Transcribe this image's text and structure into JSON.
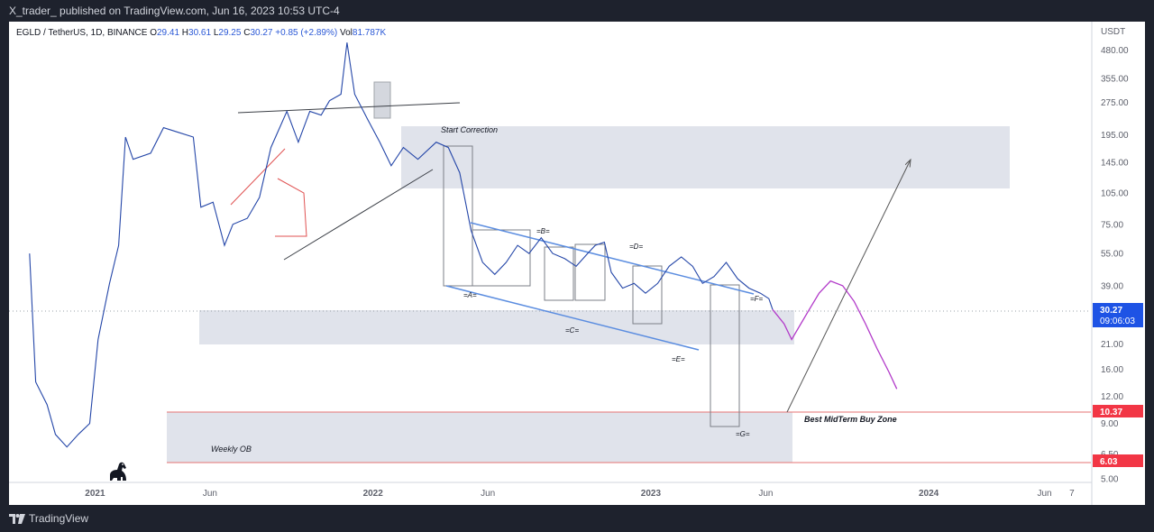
{
  "header": {
    "published_text": "X_trader_ published on TradingView.com, Jun 16, 2023 10:53 UTC-4"
  },
  "footer": {
    "brand_text": "TradingView",
    "logo_icon": "tradingview-logo-icon"
  },
  "symbol": {
    "name": "EGLD / TetherUS, 1D, BINANCE",
    "open_label": "O",
    "open": "29.41",
    "high_label": "H",
    "high": "30.61",
    "low_label": "L",
    "low": "29.25",
    "close_label": "C",
    "close": "30.27",
    "change": "+0.85 (+2.89%)",
    "vol_label": "Vol",
    "vol": "81.787K"
  },
  "colors": {
    "candle": "#2446a8",
    "zone_fill": "#e0e3eb",
    "channel_line": "#5b8de0",
    "forecast_line": "#b23ac9",
    "price_badge": "#1e53e5",
    "level_badge": "#f23645",
    "level_line": "#e57373",
    "text": "#131722",
    "axis_text": "#5d606b"
  },
  "chart_data": {
    "type": "line",
    "title": "EGLD / TetherUS, 1D, BINANCE",
    "y_unit": "USDT",
    "y_scale": "log",
    "y_ticks": [
      "480.00",
      "355.00",
      "275.00",
      "195.00",
      "145.00",
      "105.00",
      "75.00",
      "55.00",
      "39.00",
      "30.27",
      "21.00",
      "16.00",
      "12.00",
      "10.37",
      "9.00",
      "6.50",
      "6.03",
      "5.00"
    ],
    "x_ticks": [
      "2021",
      "Jun",
      "2022",
      "Jun",
      "2023",
      "Jun",
      "2024",
      "Jun",
      "7"
    ],
    "x_range": [
      "2020-09-10",
      "2024-08-01"
    ],
    "y_range": [
      4.8,
      650
    ],
    "grid": false,
    "series": [
      {
        "values": [
          [
            "2020-10-07",
            55
          ],
          [
            "2020-10-15",
            14
          ],
          [
            "2020-10-30",
            11
          ],
          [
            "2020-11-10",
            8
          ],
          [
            "2020-11-25",
            7
          ],
          [
            "2020-12-10",
            8
          ],
          [
            "2020-12-25",
            9
          ],
          [
            "2021-01-05",
            22
          ],
          [
            "2021-01-20",
            40
          ],
          [
            "2021-02-01",
            60
          ],
          [
            "2021-02-10",
            190
          ],
          [
            "2021-02-20",
            150
          ],
          [
            "2021-03-15",
            160
          ],
          [
            "2021-04-01",
            210
          ],
          [
            "2021-04-20",
            200
          ],
          [
            "2021-05-10",
            190
          ],
          [
            "2021-05-20",
            90
          ],
          [
            "2021-06-05",
            95
          ],
          [
            "2021-06-20",
            60
          ],
          [
            "2021-07-01",
            75
          ],
          [
            "2021-07-20",
            80
          ],
          [
            "2021-08-05",
            100
          ],
          [
            "2021-08-20",
            170
          ],
          [
            "2021-09-10",
            250
          ],
          [
            "2021-09-25",
            180
          ],
          [
            "2021-10-10",
            250
          ],
          [
            "2021-10-25",
            240
          ],
          [
            "2021-11-05",
            280
          ],
          [
            "2021-11-20",
            300
          ],
          [
            "2021-11-28",
            520
          ],
          [
            "2021-12-08",
            300
          ],
          [
            "2021-12-25",
            230
          ],
          [
            "2022-01-10",
            180
          ],
          [
            "2022-01-25",
            140
          ],
          [
            "2022-02-10",
            170
          ],
          [
            "2022-03-01",
            150
          ],
          [
            "2022-03-25",
            180
          ],
          [
            "2022-04-10",
            170
          ],
          [
            "2022-04-25",
            130
          ],
          [
            "2022-05-10",
            70
          ],
          [
            "2022-05-25",
            50
          ],
          [
            "2022-06-10",
            44
          ],
          [
            "2022-06-25",
            50
          ],
          [
            "2022-07-10",
            60
          ],
          [
            "2022-07-25",
            55
          ],
          [
            "2022-08-10",
            65
          ],
          [
            "2022-08-25",
            55
          ],
          [
            "2022-09-10",
            52
          ],
          [
            "2022-09-25",
            48
          ],
          [
            "2022-10-10",
            55
          ],
          [
            "2022-10-20",
            60
          ],
          [
            "2022-11-01",
            62
          ],
          [
            "2022-11-10",
            45
          ],
          [
            "2022-11-25",
            38
          ],
          [
            "2022-12-10",
            40
          ],
          [
            "2022-12-25",
            36
          ],
          [
            "2023-01-10",
            40
          ],
          [
            "2023-01-25",
            48
          ],
          [
            "2023-02-10",
            53
          ],
          [
            "2023-02-25",
            48
          ],
          [
            "2023-03-10",
            40
          ],
          [
            "2023-03-25",
            43
          ],
          [
            "2023-04-10",
            50
          ],
          [
            "2023-04-25",
            42
          ],
          [
            "2023-05-10",
            38
          ],
          [
            "2023-05-25",
            36
          ],
          [
            "2023-06-05",
            34
          ],
          [
            "2023-06-10",
            30.27
          ]
        ]
      },
      {
        "values": [
          [
            "2023-06-10",
            30.27
          ],
          [
            "2023-06-25",
            26
          ],
          [
            "2023-07-05",
            22
          ],
          [
            "2023-07-25",
            29
          ],
          [
            "2023-08-10",
            36
          ],
          [
            "2023-08-25",
            41
          ],
          [
            "2023-09-10",
            39
          ],
          [
            "2023-09-25",
            33
          ],
          [
            "2023-10-10",
            26
          ],
          [
            "2023-10-25",
            20
          ],
          [
            "2023-11-10",
            15.5
          ],
          [
            "2023-11-20",
            13
          ]
        ]
      }
    ]
  },
  "annotations": {
    "start_correction": "Start Correction",
    "wave_a": "=A=",
    "wave_b": "=B=",
    "wave_c": "=C=",
    "wave_d": "=D=",
    "wave_e": "=E=",
    "wave_f": "=F=",
    "wave_g": "=G=",
    "buy_zone": "Best MidTerm Buy Zone",
    "weekly_ob": "Weekly OB"
  },
  "price_badge": {
    "price": "30.27",
    "countdown": "09:06:03"
  },
  "level_badges": {
    "upper": "10.37",
    "lower": "6.03"
  }
}
